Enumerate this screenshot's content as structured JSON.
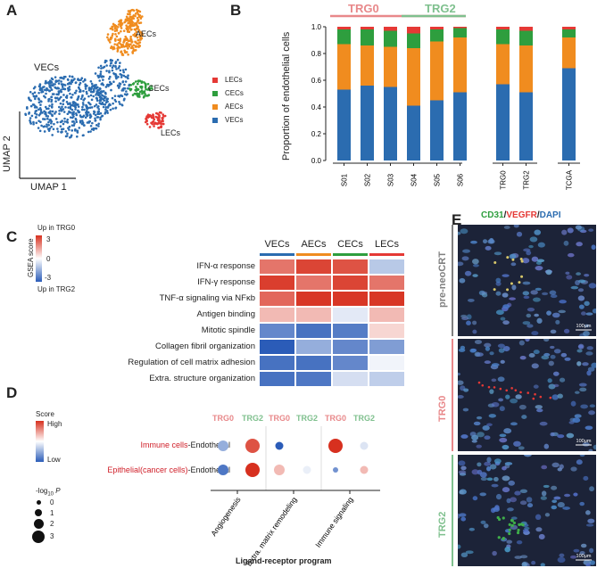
{
  "panels": {
    "a": "A",
    "b": "B",
    "c": "C",
    "d": "D",
    "e": "E"
  },
  "umap": {
    "x_label": "UMAP 1",
    "y_label": "UMAP 2",
    "cluster_labels": {
      "vecs": "VECs",
      "aecs": "AECs",
      "cecs": "CECs",
      "lecs": "LECs"
    },
    "legend": [
      {
        "label": "LECs",
        "color": "#e53935"
      },
      {
        "label": "CECs",
        "color": "#2e9e3e"
      },
      {
        "label": "AECs",
        "color": "#f08c1f"
      },
      {
        "label": "VECs",
        "color": "#2b6cb0"
      }
    ]
  },
  "chart_data": {
    "type": "bar",
    "stacked": true,
    "ylabel": "Proportion of endothelial cells",
    "ylim": [
      0,
      1.0
    ],
    "yticks": [
      "0.0",
      "0.2",
      "0.4",
      "0.6",
      "0.8",
      "1.0"
    ],
    "group_headers": [
      {
        "label": "TRG0",
        "color": "#e8888a"
      },
      {
        "label": "TRG2",
        "color": "#7fc08e"
      }
    ],
    "categories": [
      "S01",
      "S02",
      "S03",
      "S04",
      "S05",
      "S06",
      "TRG0",
      "TRG2",
      "TCGA"
    ],
    "series": [
      {
        "name": "VECs",
        "color": "#2b6cb0",
        "values": [
          0.53,
          0.56,
          0.55,
          0.41,
          0.45,
          0.51,
          0.57,
          0.51,
          0.69
        ]
      },
      {
        "name": "AECs",
        "color": "#f08c1f",
        "values": [
          0.34,
          0.3,
          0.3,
          0.43,
          0.44,
          0.41,
          0.3,
          0.35,
          0.23
        ]
      },
      {
        "name": "CECs",
        "color": "#2e9e3e",
        "values": [
          0.11,
          0.12,
          0.12,
          0.11,
          0.09,
          0.07,
          0.11,
          0.11,
          0.06
        ]
      },
      {
        "name": "LECs",
        "color": "#e53935",
        "values": [
          0.02,
          0.02,
          0.03,
          0.05,
          0.02,
          0.01,
          0.02,
          0.03,
          0.02
        ]
      }
    ]
  },
  "gsea": {
    "scale_title": "GSEA score",
    "up_trg0": "Up in TRG0",
    "up_trg2": "Up in TRG2",
    "scale_ticks": [
      "3",
      "0",
      "-3"
    ],
    "columns": [
      {
        "label": "VECs",
        "color": "#2b6cb0"
      },
      {
        "label": "AECs",
        "color": "#f08c1f"
      },
      {
        "label": "CECs",
        "color": "#2e9e3e"
      },
      {
        "label": "LECs",
        "color": "#e53935"
      }
    ],
    "rows": [
      {
        "label": "IFN-α response",
        "values": [
          2.0,
          2.7,
          2.5,
          -1.0
        ]
      },
      {
        "label": "IFN-γ response",
        "values": [
          2.8,
          2.0,
          2.7,
          2.0
        ]
      },
      {
        "label": "TNF-α signaling via NFκb",
        "values": [
          2.2,
          2.9,
          2.9,
          2.9
        ]
      },
      {
        "label": "Antigen binding",
        "values": [
          1.0,
          1.0,
          -0.4,
          1.0
        ]
      },
      {
        "label": "Mitotic spindle",
        "values": [
          -2.2,
          -2.6,
          -2.4,
          0.6
        ]
      },
      {
        "label": "Collagen fibril organization",
        "values": [
          -3.0,
          -1.5,
          -2.2,
          -1.8
        ]
      },
      {
        "label": "Regulation of cell matrix adhesion",
        "values": [
          -2.6,
          -2.6,
          -2.2,
          -0.2
        ]
      },
      {
        "label": "Extra. structure organization",
        "values": [
          -2.6,
          -2.5,
          -0.6,
          -0.9
        ]
      }
    ]
  },
  "dot": {
    "score_title": "Score",
    "score_high": "High",
    "score_low": "Low",
    "size_title_prefix": "-log",
    "size_title_sub": "10",
    "size_title_suffix": " P",
    "size_ticks": [
      "0",
      "1",
      "2",
      "3"
    ],
    "group_labels": [
      {
        "label": "TRG0",
        "color": "#e8888a"
      },
      {
        "label": "TRG2",
        "color": "#7fc08e"
      }
    ],
    "rows": [
      {
        "highlight": "Immune cells",
        "suffix": "-Endothelial"
      },
      {
        "highlight": "Epithelial(cancer cells)",
        "suffix": "-Endothelial"
      }
    ],
    "programs": [
      "Angiogenesis",
      "Extra. matrix remodeling",
      "Immune signaling"
    ],
    "x_title": "Ligand-receptor program",
    "values": [
      [
        [
          -1.5,
          2.3,
          2
        ],
        [
          2.5,
          2.3,
          3
        ],
        [
          -3,
          1.5,
          1
        ],
        [
          0,
          1,
          0
        ],
        [
          3,
          2.3,
          3
        ],
        [
          -0.5,
          2,
          1
        ]
      ],
      [
        [
          -2.5,
          2.6,
          2
        ],
        [
          3,
          3,
          3
        ],
        [
          1,
          2.2,
          2
        ],
        [
          -0.3,
          1.5,
          1
        ],
        [
          -2,
          1,
          0
        ],
        [
          1,
          1.8,
          1
        ]
      ]
    ]
  },
  "micro": {
    "stain": {
      "cd31": "CD31",
      "sep1": "/",
      "vegfr": "VEGFR",
      "sep2": "/",
      "dapi": "DAPI"
    },
    "stain_colors": {
      "cd31": "#2e9e3e",
      "vegfr": "#e53935",
      "dapi": "#2b6cb0"
    },
    "rows": [
      {
        "label": "pre-neoCRT",
        "color": "#808080"
      },
      {
        "label": "TRG0",
        "color": "#e8888a"
      },
      {
        "label": "TRG2",
        "color": "#7fc08e"
      }
    ],
    "scale_bar": "100μm"
  }
}
